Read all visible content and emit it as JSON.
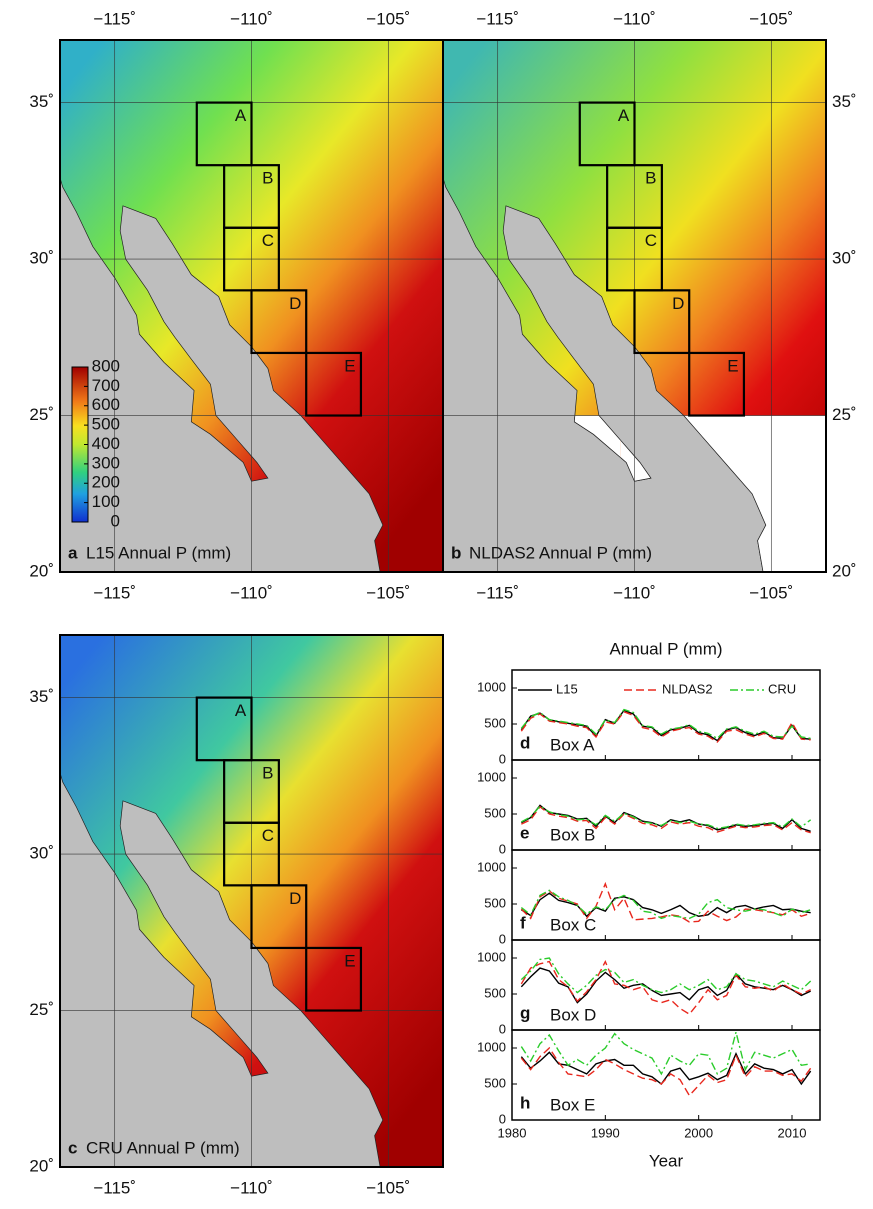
{
  "maps": {
    "xlim": [
      -117,
      -103
    ],
    "ylim": [
      20,
      37
    ],
    "xticks": [
      {
        "value": -115,
        "label": "−115˚"
      },
      {
        "value": -110,
        "label": "−110˚"
      },
      {
        "value": -105,
        "label": "−105˚"
      }
    ],
    "yticks": [
      {
        "value": 20,
        "label": "20˚"
      },
      {
        "value": 25,
        "label": "25˚"
      },
      {
        "value": 30,
        "label": "30˚"
      },
      {
        "value": 35,
        "label": "35˚"
      }
    ],
    "boxes": [
      {
        "label": "A",
        "lon": [
          -112,
          -110
        ],
        "lat": [
          33,
          35
        ]
      },
      {
        "label": "B",
        "lon": [
          -111,
          -109
        ],
        "lat": [
          31,
          33
        ]
      },
      {
        "label": "C",
        "lon": [
          -111,
          -109
        ],
        "lat": [
          29,
          31
        ]
      },
      {
        "label": "D",
        "lon": [
          -110,
          -108
        ],
        "lat": [
          27,
          29
        ]
      },
      {
        "label": "E",
        "lon": [
          -108,
          -106
        ],
        "lat": [
          25,
          27
        ]
      }
    ],
    "panels": [
      {
        "letter": "a",
        "title": "L15 Annual P (mm)"
      },
      {
        "letter": "b",
        "title": "NLDAS2 Annual P (mm)"
      },
      {
        "letter": "c",
        "title": "CRU Annual P (mm)"
      }
    ],
    "colorbar": {
      "lim": [
        0,
        800
      ],
      "ticks": [
        0,
        100,
        200,
        300,
        400,
        500,
        600,
        700,
        800
      ]
    }
  },
  "chart_data": [
    {
      "type": "line",
      "title": "Annual P (mm)",
      "letter": "d",
      "label": "Box A",
      "xlim": [
        1980,
        2013
      ],
      "xticks": [
        1980,
        1990,
        2000,
        2010
      ],
      "ylim": [
        0,
        1250
      ],
      "yticks": [
        0,
        500,
        1000
      ],
      "x": [
        1981,
        1982,
        1983,
        1984,
        1985,
        1986,
        1987,
        1988,
        1989,
        1990,
        1991,
        1992,
        1993,
        1994,
        1995,
        1996,
        1997,
        1998,
        1999,
        2000,
        2001,
        2002,
        2003,
        2004,
        2005,
        2006,
        2007,
        2008,
        2009,
        2010,
        2011,
        2012
      ],
      "series": [
        {
          "name": "L15",
          "color": "#000000",
          "style": "solid",
          "values": [
            420,
            610,
            650,
            560,
            530,
            510,
            490,
            470,
            330,
            560,
            510,
            690,
            640,
            470,
            450,
            340,
            420,
            440,
            480,
            380,
            350,
            270,
            420,
            450,
            380,
            340,
            390,
            310,
            300,
            480,
            300,
            290
          ]
        },
        {
          "name": "NLDAS2",
          "color": "#e8281e",
          "style": "dashed",
          "values": [
            400,
            580,
            640,
            540,
            520,
            500,
            470,
            450,
            320,
            530,
            500,
            670,
            620,
            450,
            420,
            320,
            400,
            430,
            450,
            360,
            330,
            250,
            400,
            420,
            360,
            320,
            370,
            300,
            290,
            520,
            290,
            280
          ]
        },
        {
          "name": "CRU",
          "color": "#2bcc2b",
          "style": "dashdot",
          "values": [
            440,
            600,
            660,
            560,
            540,
            520,
            500,
            480,
            360,
            560,
            520,
            700,
            660,
            480,
            460,
            360,
            430,
            450,
            490,
            400,
            370,
            300,
            430,
            460,
            400,
            360,
            400,
            330,
            320,
            470,
            320,
            300
          ]
        }
      ]
    },
    {
      "type": "line",
      "letter": "e",
      "label": "Box B",
      "xlim": [
        1980,
        2013
      ],
      "xticks": [
        1980,
        1990,
        2000,
        2010
      ],
      "ylim": [
        0,
        1250
      ],
      "yticks": [
        0,
        500,
        1000
      ],
      "x": [
        1981,
        1982,
        1983,
        1984,
        1985,
        1986,
        1987,
        1988,
        1989,
        1990,
        1991,
        1992,
        1993,
        1994,
        1995,
        1996,
        1997,
        1998,
        1999,
        2000,
        2001,
        2002,
        2003,
        2004,
        2005,
        2006,
        2007,
        2008,
        2009,
        2010,
        2011,
        2012
      ],
      "series": [
        {
          "color": "#000000",
          "style": "solid",
          "values": [
            380,
            450,
            620,
            520,
            500,
            480,
            430,
            440,
            330,
            470,
            380,
            520,
            470,
            400,
            380,
            330,
            420,
            390,
            420,
            360,
            340,
            280,
            310,
            350,
            330,
            340,
            360,
            370,
            300,
            420,
            300,
            260
          ]
        },
        {
          "color": "#e8281e",
          "style": "dashed",
          "values": [
            360,
            420,
            600,
            500,
            470,
            450,
            400,
            410,
            300,
            450,
            360,
            500,
            440,
            370,
            350,
            300,
            390,
            360,
            380,
            330,
            310,
            250,
            290,
            330,
            310,
            320,
            340,
            350,
            280,
            380,
            280,
            240
          ]
        },
        {
          "color": "#2bcc2b",
          "style": "dashdot",
          "values": [
            390,
            460,
            610,
            530,
            490,
            470,
            420,
            430,
            350,
            480,
            400,
            510,
            460,
            390,
            370,
            340,
            410,
            380,
            400,
            360,
            350,
            300,
            320,
            360,
            340,
            350,
            370,
            380,
            320,
            430,
            320,
            420
          ]
        }
      ]
    },
    {
      "type": "line",
      "letter": "f",
      "label": "Box C",
      "xlim": [
        1980,
        2013
      ],
      "xticks": [
        1980,
        1990,
        2000,
        2010
      ],
      "ylim": [
        0,
        1250
      ],
      "yticks": [
        0,
        500,
        1000
      ],
      "x": [
        1981,
        1982,
        1983,
        1984,
        1985,
        1986,
        1987,
        1988,
        1989,
        1990,
        1991,
        1992,
        1993,
        1994,
        1995,
        1996,
        1997,
        1998,
        1999,
        2000,
        2001,
        2002,
        2003,
        2004,
        2005,
        2006,
        2007,
        2008,
        2009,
        2010,
        2011,
        2012
      ],
      "series": [
        {
          "color": "#000000",
          "style": "solid",
          "values": [
            420,
            340,
            560,
            650,
            550,
            520,
            480,
            330,
            450,
            400,
            580,
            600,
            560,
            450,
            420,
            370,
            420,
            480,
            380,
            330,
            350,
            450,
            380,
            460,
            480,
            430,
            460,
            480,
            420,
            430,
            400,
            380
          ]
        },
        {
          "color": "#e8281e",
          "style": "dashed",
          "values": [
            430,
            300,
            600,
            680,
            580,
            540,
            500,
            300,
            470,
            780,
            420,
            580,
            280,
            290,
            300,
            320,
            350,
            330,
            250,
            260,
            400,
            330,
            270,
            320,
            430,
            420,
            400,
            380,
            350,
            420,
            330,
            370
          ]
        },
        {
          "color": "#2bcc2b",
          "style": "dashdot",
          "values": [
            450,
            350,
            620,
            690,
            600,
            550,
            480,
            360,
            460,
            420,
            560,
            620,
            550,
            400,
            380,
            300,
            340,
            320,
            300,
            360,
            520,
            560,
            450,
            420,
            400,
            430,
            420,
            380,
            330,
            430,
            380,
            420
          ]
        }
      ]
    },
    {
      "type": "line",
      "letter": "g",
      "label": "Box D",
      "xlim": [
        1980,
        2013
      ],
      "xticks": [
        1980,
        1990,
        2000,
        2010
      ],
      "ylim": [
        0,
        1250
      ],
      "yticks": [
        0,
        500,
        1000
      ],
      "x": [
        1981,
        1982,
        1983,
        1984,
        1985,
        1986,
        1987,
        1988,
        1989,
        1990,
        1991,
        1992,
        1993,
        1994,
        1995,
        1996,
        1997,
        1998,
        1999,
        2000,
        2001,
        2002,
        2003,
        2004,
        2005,
        2006,
        2007,
        2008,
        2009,
        2010,
        2011,
        2012
      ],
      "series": [
        {
          "color": "#000000",
          "style": "solid",
          "values": [
            600,
            740,
            860,
            820,
            650,
            600,
            380,
            500,
            680,
            800,
            700,
            580,
            620,
            640,
            550,
            480,
            500,
            520,
            420,
            560,
            600,
            480,
            550,
            780,
            640,
            600,
            580,
            560,
            620,
            560,
            480,
            540
          ]
        },
        {
          "color": "#e8281e",
          "style": "dashed",
          "values": [
            640,
            860,
            920,
            950,
            700,
            600,
            400,
            530,
            700,
            950,
            640,
            620,
            560,
            600,
            420,
            380,
            420,
            300,
            220,
            380,
            560,
            420,
            480,
            760,
            600,
            580,
            600,
            540,
            640,
            560,
            500,
            560
          ]
        },
        {
          "color": "#2bcc2b",
          "style": "dashdot",
          "values": [
            700,
            820,
            980,
            1000,
            780,
            640,
            520,
            620,
            760,
            840,
            800,
            660,
            700,
            620,
            560,
            520,
            560,
            640,
            560,
            620,
            700,
            560,
            600,
            780,
            700,
            680,
            640,
            600,
            680,
            620,
            560,
            680
          ]
        }
      ]
    },
    {
      "type": "line",
      "letter": "h",
      "label": "Box E",
      "xlabel": "Year",
      "xlim": [
        1980,
        2013
      ],
      "xticks": [
        1980,
        1990,
        2000,
        2010
      ],
      "ylim": [
        0,
        1250
      ],
      "yticks": [
        0,
        500,
        1000
      ],
      "x": [
        1981,
        1982,
        1983,
        1984,
        1985,
        1986,
        1987,
        1988,
        1989,
        1990,
        1991,
        1992,
        1993,
        1994,
        1995,
        1996,
        1997,
        1998,
        1999,
        2000,
        2001,
        2002,
        2003,
        2004,
        2005,
        2006,
        2007,
        2008,
        2009,
        2010,
        2011,
        2012
      ],
      "series": [
        {
          "color": "#000000",
          "style": "solid",
          "values": [
            880,
            720,
            820,
            940,
            780,
            760,
            700,
            640,
            780,
            820,
            840,
            760,
            760,
            640,
            600,
            500,
            680,
            720,
            560,
            600,
            650,
            560,
            620,
            920,
            640,
            780,
            720,
            700,
            640,
            700,
            500,
            680
          ]
        },
        {
          "color": "#e8281e",
          "style": "dashed",
          "values": [
            860,
            700,
            880,
            1000,
            800,
            640,
            620,
            600,
            700,
            840,
            780,
            700,
            640,
            580,
            560,
            500,
            640,
            560,
            340,
            480,
            620,
            520,
            560,
            900,
            600,
            740,
            680,
            680,
            620,
            640,
            540,
            720
          ]
        },
        {
          "color": "#2bcc2b",
          "style": "dashdot",
          "values": [
            1020,
            820,
            1060,
            1180,
            960,
            760,
            840,
            760,
            900,
            1000,
            1200,
            1060,
            980,
            920,
            860,
            640,
            900,
            820,
            760,
            920,
            900,
            640,
            720,
            1220,
            700,
            940,
            900,
            860,
            920,
            980,
            760,
            780
          ]
        }
      ]
    }
  ]
}
